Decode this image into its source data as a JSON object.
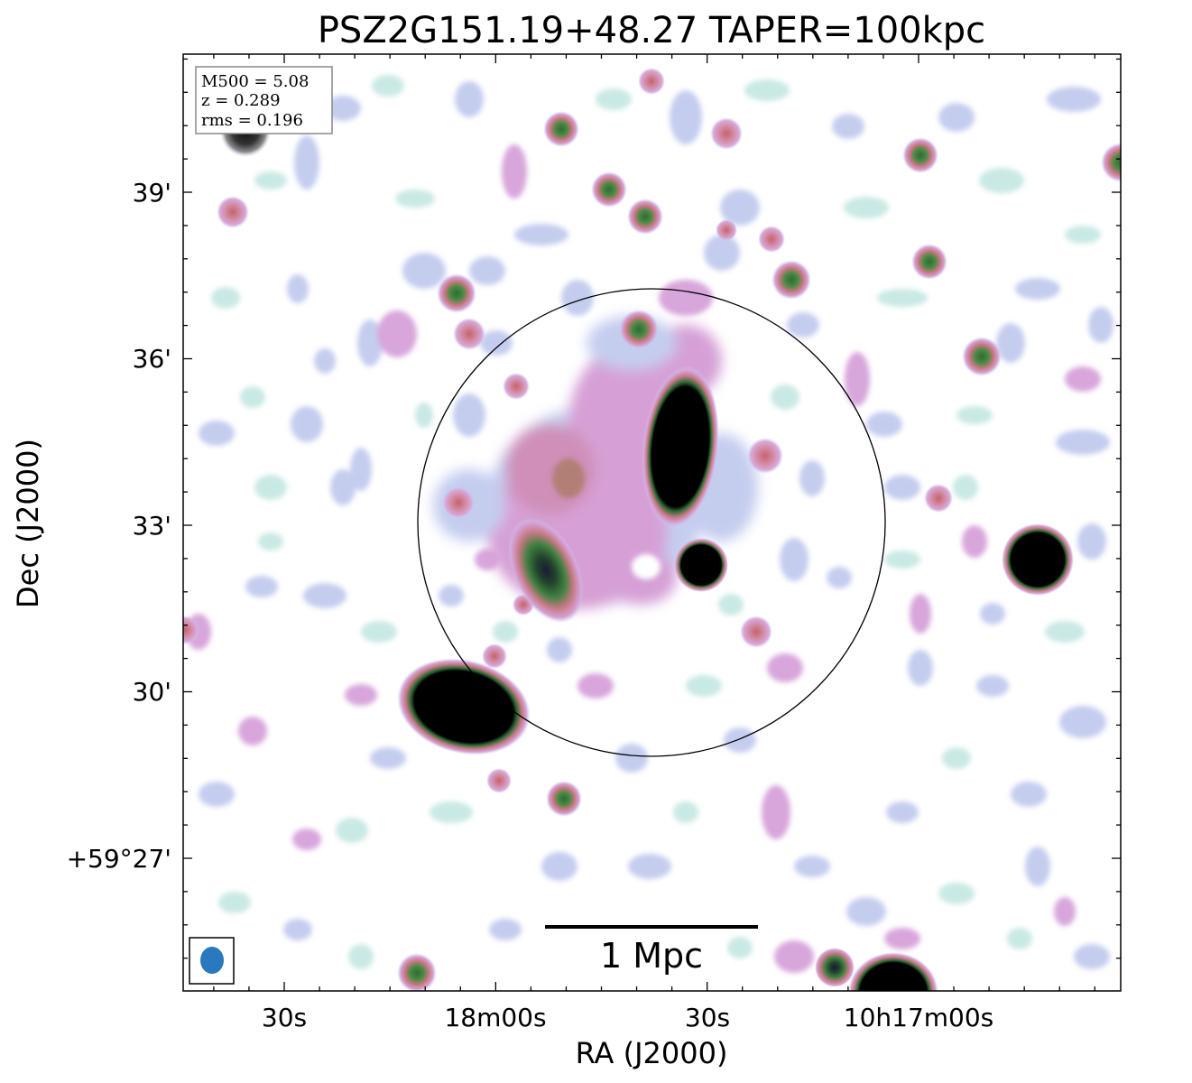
{
  "figure": {
    "title": "PSZ2G151.19+48.27 TAPER=100kpc",
    "xlabel": "RA (J2000)",
    "ylabel": "Dec (J2000)",
    "x_ticks": [
      "30s",
      "18m00s",
      "30s",
      "10h17m00s"
    ],
    "y_ticks": [
      "39'",
      "36'",
      "33'",
      "30'",
      "+59°27'"
    ],
    "info": {
      "m500": "M500 = 5.08",
      "z": "z = 0.289",
      "rms": "rms = 0.196"
    },
    "scalebar_label": "1 Mpc"
  },
  "colors": {
    "faint": "#bfe6e0",
    "lavender": "#b7c2ec",
    "pink": "#d79ad0",
    "salmon": "#cf7f86",
    "green": "#3d7a3a",
    "core": "#000000",
    "beam": "#2a78bd"
  }
}
